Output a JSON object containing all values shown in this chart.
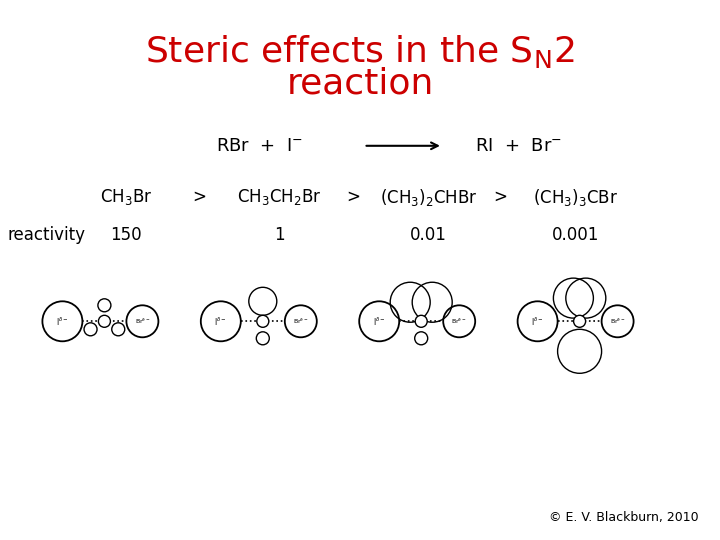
{
  "title_color": "#cc0000",
  "title_fontsize": 26,
  "bg_color": "#ffffff",
  "copyright": "© E. V. Blackburn, 2010"
}
